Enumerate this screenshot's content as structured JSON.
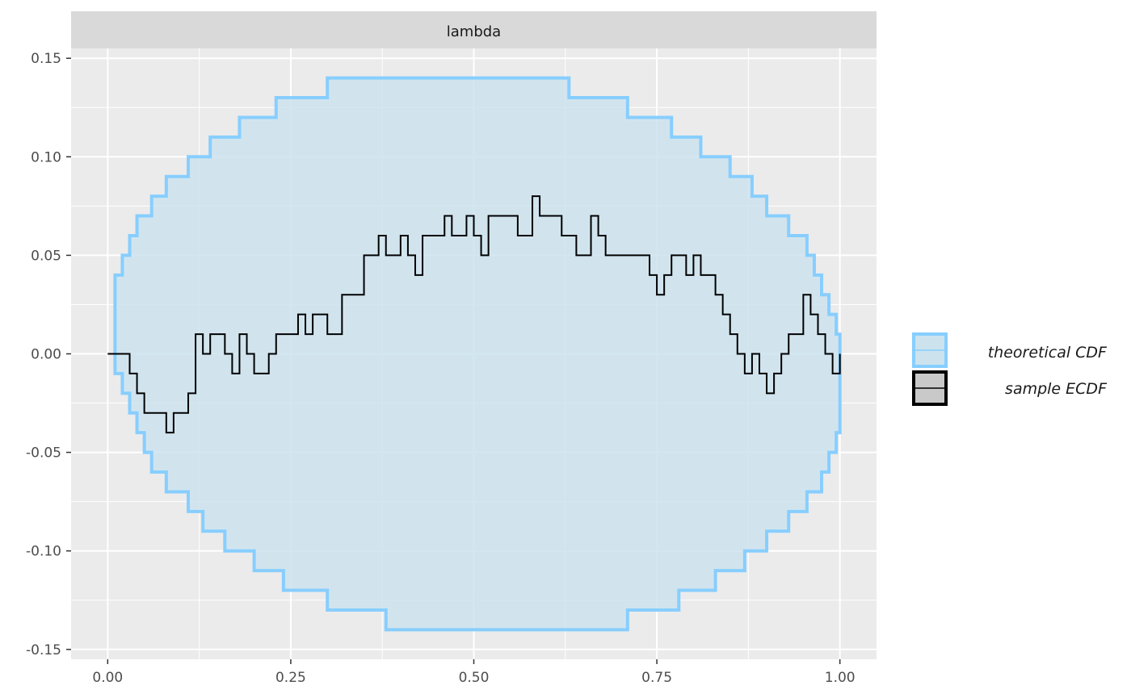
{
  "chart_data": {
    "type": "line",
    "facet_label": "lambda",
    "xlim": [
      -0.05,
      1.05
    ],
    "ylim": [
      -0.155,
      0.155
    ],
    "x_ticks": [
      0.0,
      0.25,
      0.5,
      0.75,
      1.0
    ],
    "x_tick_labels": [
      "0.00",
      "0.25",
      "0.50",
      "0.75",
      "1.00"
    ],
    "y_ticks": [
      -0.15,
      -0.1,
      -0.05,
      0.0,
      0.05,
      0.1,
      0.15
    ],
    "y_tick_labels": [
      "-0.15",
      "-0.10",
      "-0.05",
      "0.00",
      "0.05",
      "0.10",
      "0.15"
    ],
    "grid": true,
    "legend_position": "right",
    "colors": {
      "band_fill": "#cce3ee",
      "band_line": "#87ceff",
      "ecdf_line": "#000000",
      "panel_bg": "#ebebeb",
      "strip_bg": "#d9d9d9",
      "grid": "#ffffff"
    },
    "series": [
      {
        "name": "theoretical CDF",
        "kind": "band",
        "upper": [
          [
            0.01,
            0.0
          ],
          [
            0.01,
            0.04
          ],
          [
            0.02,
            0.04
          ],
          [
            0.02,
            0.05
          ],
          [
            0.03,
            0.05
          ],
          [
            0.03,
            0.06
          ],
          [
            0.04,
            0.06
          ],
          [
            0.04,
            0.07
          ],
          [
            0.06,
            0.07
          ],
          [
            0.06,
            0.08
          ],
          [
            0.08,
            0.08
          ],
          [
            0.08,
            0.09
          ],
          [
            0.11,
            0.09
          ],
          [
            0.11,
            0.1
          ],
          [
            0.14,
            0.1
          ],
          [
            0.14,
            0.11
          ],
          [
            0.18,
            0.11
          ],
          [
            0.18,
            0.12
          ],
          [
            0.23,
            0.12
          ],
          [
            0.23,
            0.13
          ],
          [
            0.3,
            0.13
          ],
          [
            0.3,
            0.14
          ],
          [
            0.63,
            0.14
          ],
          [
            0.63,
            0.13
          ],
          [
            0.71,
            0.13
          ],
          [
            0.71,
            0.12
          ],
          [
            0.77,
            0.12
          ],
          [
            0.77,
            0.11
          ],
          [
            0.81,
            0.11
          ],
          [
            0.81,
            0.1
          ],
          [
            0.85,
            0.1
          ],
          [
            0.85,
            0.09
          ],
          [
            0.88,
            0.09
          ],
          [
            0.88,
            0.08
          ],
          [
            0.9,
            0.08
          ],
          [
            0.9,
            0.07
          ],
          [
            0.93,
            0.07
          ],
          [
            0.93,
            0.06
          ],
          [
            0.955,
            0.06
          ],
          [
            0.955,
            0.05
          ],
          [
            0.965,
            0.05
          ],
          [
            0.965,
            0.04
          ],
          [
            0.975,
            0.04
          ],
          [
            0.975,
            0.03
          ],
          [
            0.985,
            0.03
          ],
          [
            0.985,
            0.02
          ],
          [
            0.995,
            0.02
          ],
          [
            0.995,
            0.01
          ],
          [
            1.0,
            0.01
          ],
          [
            1.0,
            0.0
          ]
        ],
        "lower": [
          [
            0.01,
            0.0
          ],
          [
            0.01,
            -0.01
          ],
          [
            0.02,
            -0.01
          ],
          [
            0.02,
            -0.02
          ],
          [
            0.03,
            -0.02
          ],
          [
            0.03,
            -0.03
          ],
          [
            0.04,
            -0.03
          ],
          [
            0.04,
            -0.04
          ],
          [
            0.05,
            -0.04
          ],
          [
            0.05,
            -0.05
          ],
          [
            0.06,
            -0.05
          ],
          [
            0.06,
            -0.06
          ],
          [
            0.08,
            -0.06
          ],
          [
            0.08,
            -0.07
          ],
          [
            0.11,
            -0.07
          ],
          [
            0.11,
            -0.08
          ],
          [
            0.13,
            -0.08
          ],
          [
            0.13,
            -0.09
          ],
          [
            0.16,
            -0.09
          ],
          [
            0.16,
            -0.1
          ],
          [
            0.2,
            -0.1
          ],
          [
            0.2,
            -0.11
          ],
          [
            0.24,
            -0.11
          ],
          [
            0.24,
            -0.12
          ],
          [
            0.3,
            -0.12
          ],
          [
            0.3,
            -0.13
          ],
          [
            0.38,
            -0.13
          ],
          [
            0.38,
            -0.14
          ],
          [
            0.71,
            -0.14
          ],
          [
            0.71,
            -0.13
          ],
          [
            0.78,
            -0.13
          ],
          [
            0.78,
            -0.12
          ],
          [
            0.83,
            -0.12
          ],
          [
            0.83,
            -0.11
          ],
          [
            0.87,
            -0.11
          ],
          [
            0.87,
            -0.1
          ],
          [
            0.9,
            -0.1
          ],
          [
            0.9,
            -0.09
          ],
          [
            0.93,
            -0.09
          ],
          [
            0.93,
            -0.08
          ],
          [
            0.955,
            -0.08
          ],
          [
            0.955,
            -0.07
          ],
          [
            0.975,
            -0.07
          ],
          [
            0.975,
            -0.06
          ],
          [
            0.985,
            -0.06
          ],
          [
            0.985,
            -0.05
          ],
          [
            0.995,
            -0.05
          ],
          [
            0.995,
            -0.04
          ],
          [
            1.0,
            -0.04
          ],
          [
            1.0,
            0.0
          ]
        ]
      },
      {
        "name": "sample ECDF",
        "kind": "step",
        "points": [
          [
            0.0,
            0.0
          ],
          [
            0.03,
            0.0
          ],
          [
            0.03,
            -0.01
          ],
          [
            0.04,
            -0.01
          ],
          [
            0.04,
            -0.02
          ],
          [
            0.05,
            -0.02
          ],
          [
            0.05,
            -0.03
          ],
          [
            0.08,
            -0.03
          ],
          [
            0.08,
            -0.04
          ],
          [
            0.09,
            -0.04
          ],
          [
            0.09,
            -0.03
          ],
          [
            0.11,
            -0.03
          ],
          [
            0.11,
            -0.02
          ],
          [
            0.12,
            -0.02
          ],
          [
            0.12,
            0.01
          ],
          [
            0.13,
            0.01
          ],
          [
            0.13,
            0.0
          ],
          [
            0.14,
            0.0
          ],
          [
            0.14,
            0.01
          ],
          [
            0.16,
            0.01
          ],
          [
            0.16,
            0.0
          ],
          [
            0.17,
            0.0
          ],
          [
            0.17,
            -0.01
          ],
          [
            0.18,
            -0.01
          ],
          [
            0.18,
            0.01
          ],
          [
            0.19,
            0.01
          ],
          [
            0.19,
            0.0
          ],
          [
            0.2,
            0.0
          ],
          [
            0.2,
            -0.01
          ],
          [
            0.22,
            -0.01
          ],
          [
            0.22,
            0.0
          ],
          [
            0.23,
            0.0
          ],
          [
            0.23,
            0.01
          ],
          [
            0.26,
            0.01
          ],
          [
            0.26,
            0.02
          ],
          [
            0.27,
            0.02
          ],
          [
            0.27,
            0.01
          ],
          [
            0.28,
            0.01
          ],
          [
            0.28,
            0.02
          ],
          [
            0.3,
            0.02
          ],
          [
            0.3,
            0.01
          ],
          [
            0.32,
            0.01
          ],
          [
            0.32,
            0.03
          ],
          [
            0.35,
            0.03
          ],
          [
            0.35,
            0.05
          ],
          [
            0.37,
            0.05
          ],
          [
            0.37,
            0.06
          ],
          [
            0.38,
            0.06
          ],
          [
            0.38,
            0.05
          ],
          [
            0.4,
            0.05
          ],
          [
            0.4,
            0.06
          ],
          [
            0.41,
            0.06
          ],
          [
            0.41,
            0.05
          ],
          [
            0.42,
            0.05
          ],
          [
            0.42,
            0.04
          ],
          [
            0.43,
            0.04
          ],
          [
            0.43,
            0.06
          ],
          [
            0.46,
            0.06
          ],
          [
            0.46,
            0.07
          ],
          [
            0.47,
            0.07
          ],
          [
            0.47,
            0.06
          ],
          [
            0.49,
            0.06
          ],
          [
            0.49,
            0.07
          ],
          [
            0.5,
            0.07
          ],
          [
            0.5,
            0.06
          ],
          [
            0.51,
            0.06
          ],
          [
            0.51,
            0.05
          ],
          [
            0.52,
            0.05
          ],
          [
            0.52,
            0.07
          ],
          [
            0.56,
            0.07
          ],
          [
            0.56,
            0.06
          ],
          [
            0.58,
            0.06
          ],
          [
            0.58,
            0.08
          ],
          [
            0.59,
            0.08
          ],
          [
            0.59,
            0.07
          ],
          [
            0.62,
            0.07
          ],
          [
            0.62,
            0.06
          ],
          [
            0.64,
            0.06
          ],
          [
            0.64,
            0.05
          ],
          [
            0.66,
            0.05
          ],
          [
            0.66,
            0.07
          ],
          [
            0.67,
            0.07
          ],
          [
            0.67,
            0.06
          ],
          [
            0.68,
            0.06
          ],
          [
            0.68,
            0.05
          ],
          [
            0.74,
            0.05
          ],
          [
            0.74,
            0.04
          ],
          [
            0.75,
            0.04
          ],
          [
            0.75,
            0.03
          ],
          [
            0.76,
            0.03
          ],
          [
            0.76,
            0.04
          ],
          [
            0.77,
            0.04
          ],
          [
            0.77,
            0.05
          ],
          [
            0.79,
            0.05
          ],
          [
            0.79,
            0.04
          ],
          [
            0.8,
            0.04
          ],
          [
            0.8,
            0.05
          ],
          [
            0.81,
            0.05
          ],
          [
            0.81,
            0.04
          ],
          [
            0.83,
            0.04
          ],
          [
            0.83,
            0.03
          ],
          [
            0.84,
            0.03
          ],
          [
            0.84,
            0.02
          ],
          [
            0.85,
            0.02
          ],
          [
            0.85,
            0.01
          ],
          [
            0.86,
            0.01
          ],
          [
            0.86,
            0.0
          ],
          [
            0.87,
            0.0
          ],
          [
            0.87,
            -0.01
          ],
          [
            0.88,
            -0.01
          ],
          [
            0.88,
            0.0
          ],
          [
            0.89,
            0.0
          ],
          [
            0.89,
            -0.01
          ],
          [
            0.9,
            -0.01
          ],
          [
            0.9,
            -0.02
          ],
          [
            0.91,
            -0.02
          ],
          [
            0.91,
            -0.01
          ],
          [
            0.92,
            -0.01
          ],
          [
            0.92,
            0.0
          ],
          [
            0.93,
            0.0
          ],
          [
            0.93,
            0.01
          ],
          [
            0.95,
            0.01
          ],
          [
            0.95,
            0.03
          ],
          [
            0.96,
            0.03
          ],
          [
            0.96,
            0.02
          ],
          [
            0.97,
            0.02
          ],
          [
            0.97,
            0.01
          ],
          [
            0.98,
            0.01
          ],
          [
            0.98,
            0.0
          ],
          [
            0.99,
            0.0
          ],
          [
            0.99,
            -0.01
          ],
          [
            1.0,
            -0.01
          ],
          [
            1.0,
            0.0
          ]
        ]
      }
    ]
  }
}
